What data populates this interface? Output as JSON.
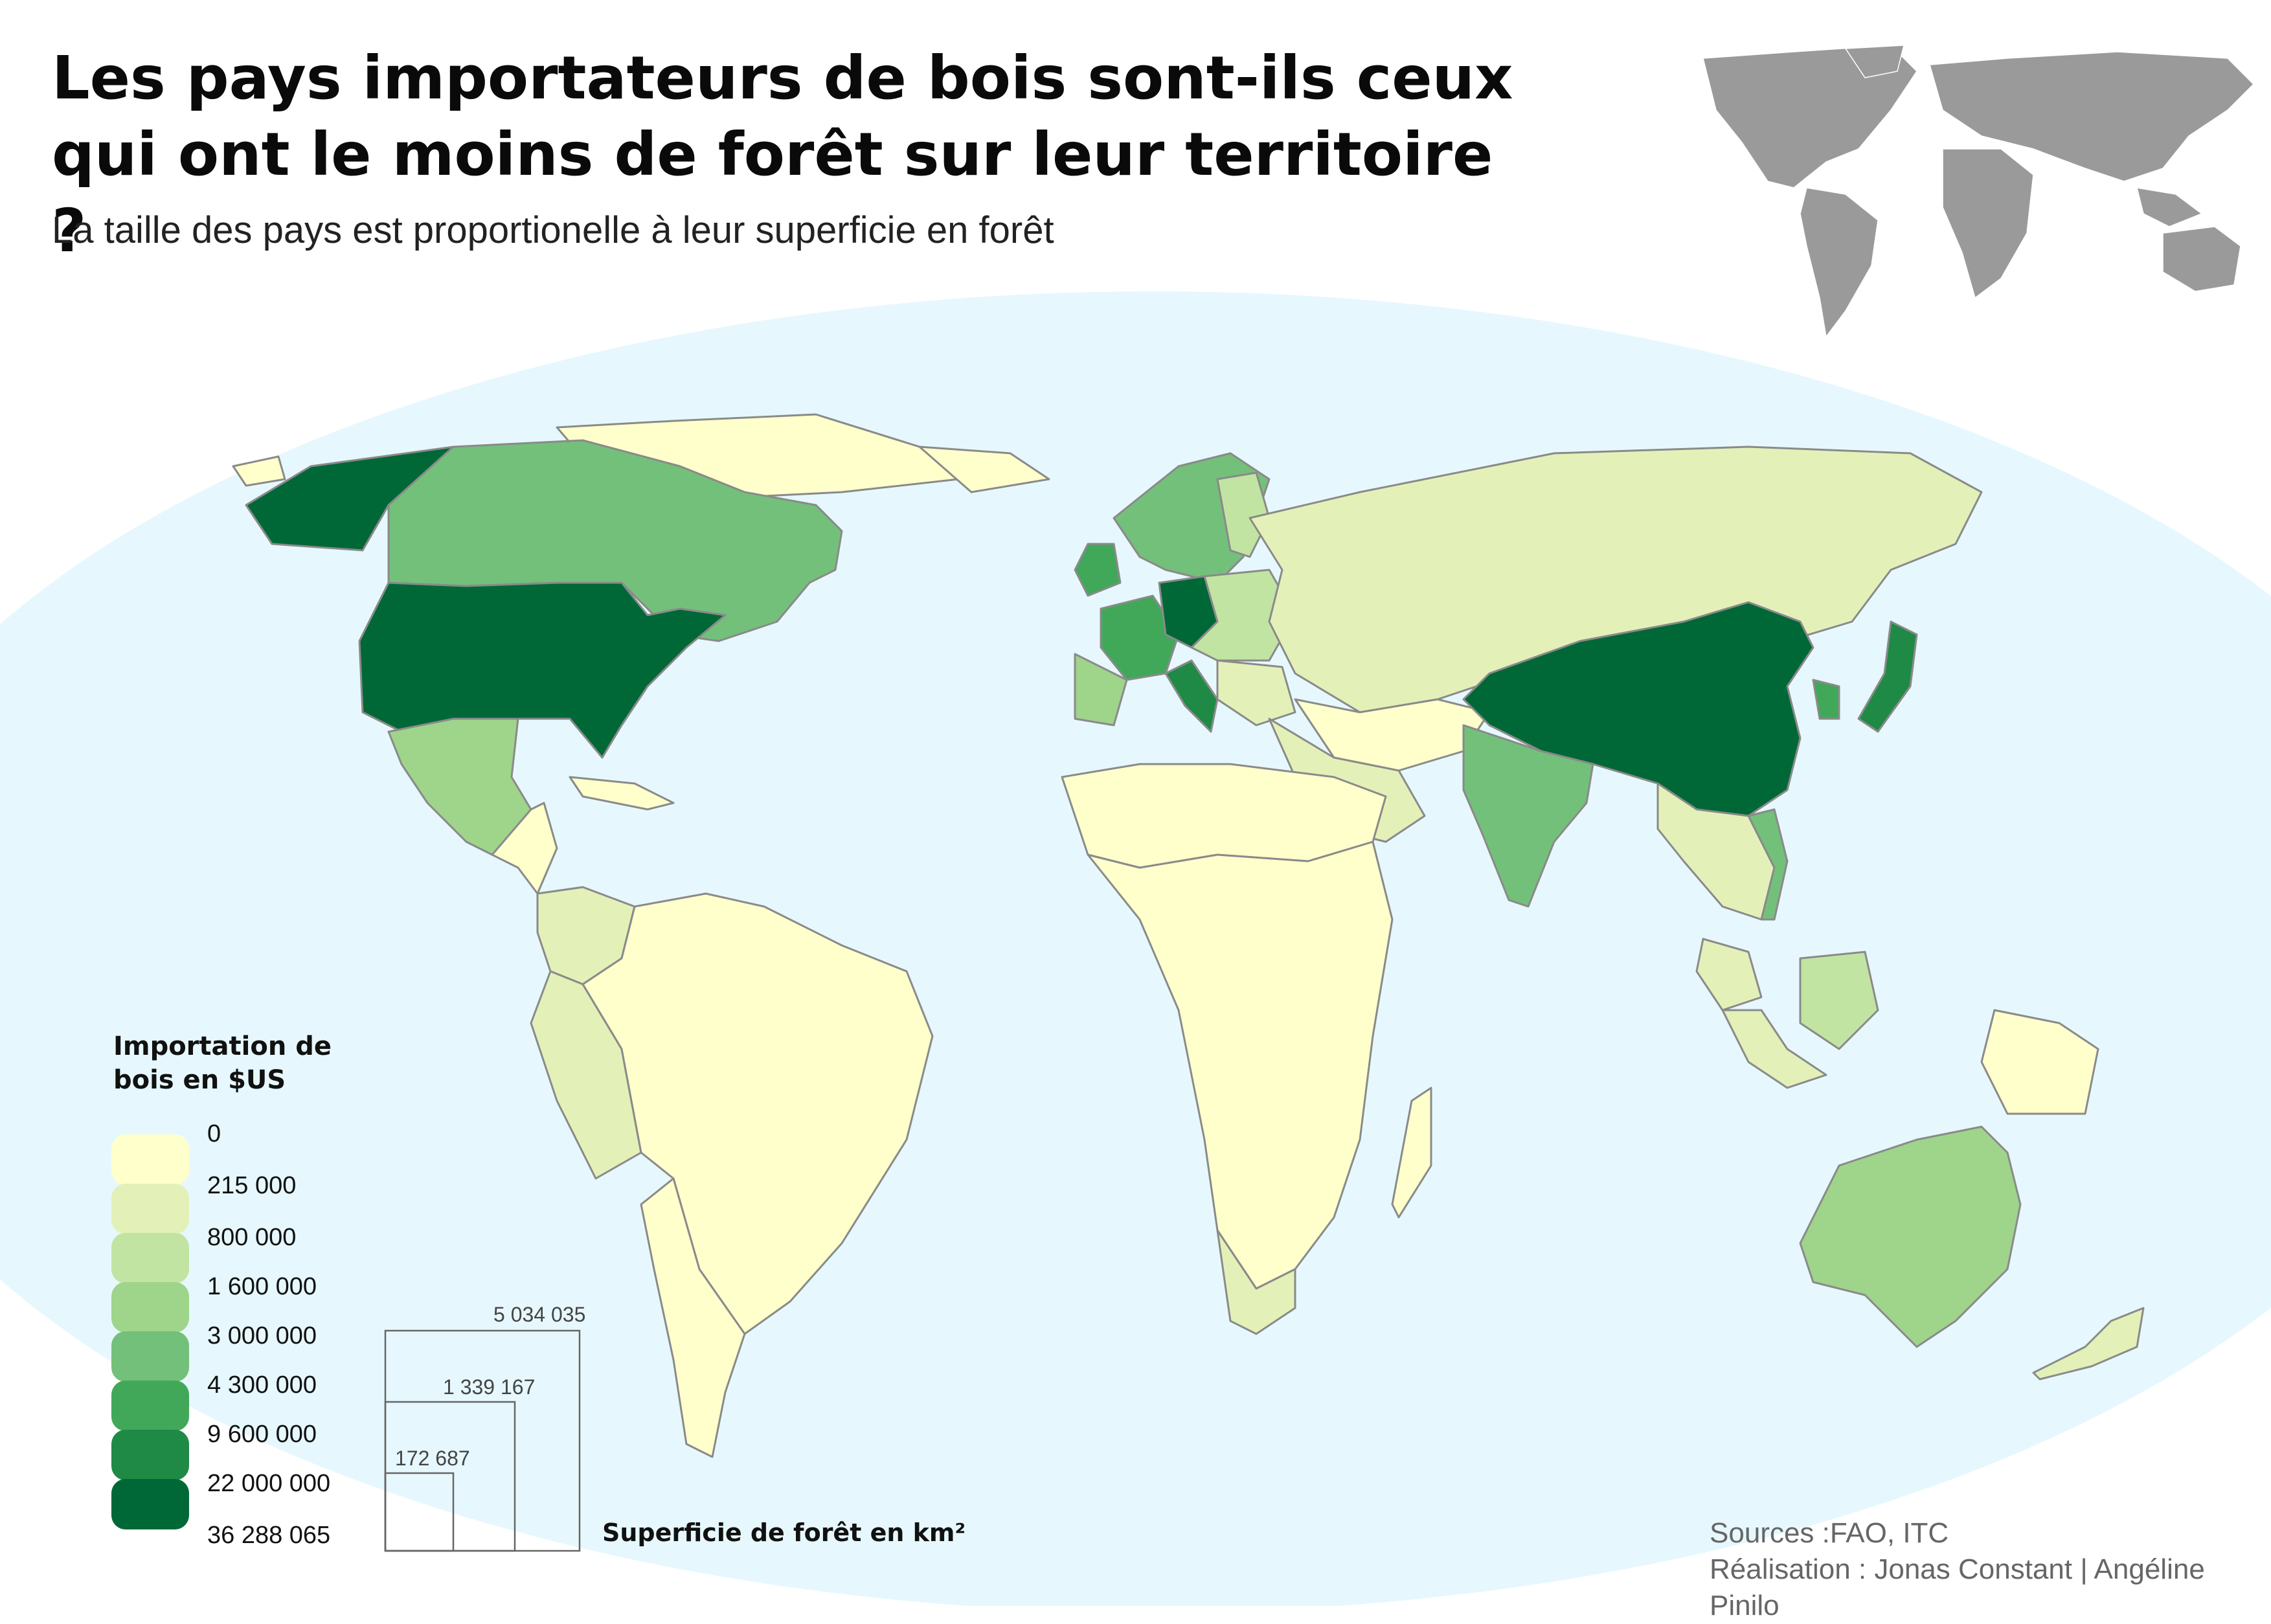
{
  "title": "Les pays importateurs de bois sont-ils ceux qui ont le moins de forêt sur leur territoire ?",
  "subtitle": "La taille des pays est proportionelle à leur superficie en forêt",
  "colors": {
    "ocean": "#e6f8fd",
    "border": "#8a8a8a",
    "inset_land": "#9a9a9a",
    "scale": [
      "#ffffcc",
      "#e3f1b8",
      "#c2e4a2",
      "#9fd48b",
      "#73c07a",
      "#41a85a",
      "#1f8a45",
      "#006837"
    ]
  },
  "legend": {
    "title": "Importation de bois en $US",
    "labels": [
      "0",
      "215 000",
      "800 000",
      "1 600 000",
      "3 000 000",
      "4 300 000",
      "9 600 000",
      "22 000 000",
      "36 288 065"
    ]
  },
  "size_legend": {
    "title": "Superficie de forêt en km²",
    "values": [
      "5 034 035",
      "1 339 167",
      "172 687"
    ]
  },
  "sources": {
    "line1": "Sources :FAO, ITC",
    "line2": "Réalisation : Jonas Constant | Angéline Pinilo"
  }
}
